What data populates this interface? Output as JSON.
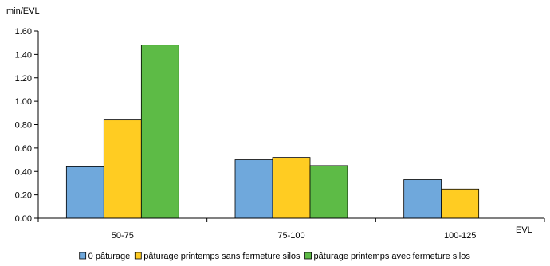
{
  "chart_data": {
    "type": "bar",
    "ylabel": "min/EVL",
    "xlabel": "EVL",
    "ylim": [
      0,
      1.6
    ],
    "ytick_step": 0.2,
    "yticks": [
      "0.00",
      "0.20",
      "0.40",
      "0.60",
      "0.80",
      "1.00",
      "1.20",
      "1.40",
      "1.60"
    ],
    "categories": [
      "50-75",
      "75-100",
      "100-125"
    ],
    "series": [
      {
        "name": "0 pâturage",
        "color": "#6fa8dc",
        "values": [
          0.44,
          0.5,
          0.33
        ]
      },
      {
        "name": "pâturage printemps sans fermeture silos",
        "color": "#ffcc22",
        "values": [
          0.84,
          0.52,
          0.25
        ]
      },
      {
        "name": "pâturage printemps avec fermeture silos",
        "color": "#5dbb46",
        "values": [
          1.48,
          0.45,
          null
        ]
      }
    ],
    "grid": false,
    "legend_position": "bottom"
  }
}
